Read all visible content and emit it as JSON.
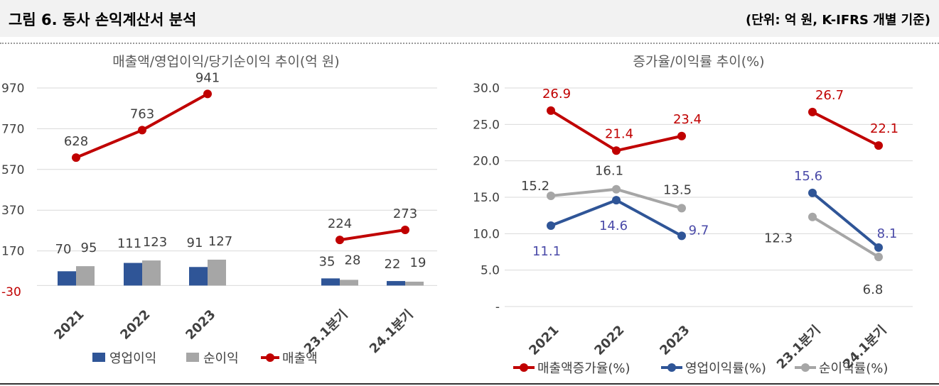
{
  "figure": {
    "title": "그림 6. 동사 손익계산서 분석",
    "unit": "(단위: 억 원, K-IFRS 개별 기준)"
  },
  "colors": {
    "revenue": "#c00000",
    "operating": "#2f5597",
    "net": "#a6a6a6",
    "grid": "#d9d9d9",
    "neg_tick": "#c00000"
  },
  "chart_data": [
    {
      "type": "bar",
      "title": "매출액/영업이익/당기순이익 추이(억 원)",
      "categories": [
        "2021",
        "2022",
        "2023",
        "",
        "23.1분기",
        "24.1분기"
      ],
      "ylim": [
        -30,
        970
      ],
      "yticks": [
        "970",
        "770",
        "570",
        "370",
        "170",
        "-30"
      ],
      "grid": true,
      "legend_position": "bottom",
      "series": [
        {
          "name": "영업이익",
          "type": "bar",
          "values": [
            70,
            111,
            91,
            null,
            35,
            22
          ]
        },
        {
          "name": "순이익",
          "type": "bar",
          "values": [
            95,
            123,
            127,
            null,
            28,
            19
          ]
        },
        {
          "name": "매출액",
          "type": "line",
          "values": [
            628,
            763,
            941,
            null,
            224,
            273
          ]
        }
      ]
    },
    {
      "type": "line",
      "title": "증가율/이익률 추이(%)",
      "categories": [
        "2021",
        "2022",
        "2023",
        "",
        "23.1분기",
        "24.1분기"
      ],
      "ylim": [
        0,
        30
      ],
      "yticks": [
        "30.0",
        "25.0",
        "20.0",
        "15.0",
        "10.0",
        "5.0",
        "-"
      ],
      "grid": true,
      "legend_position": "bottom",
      "series": [
        {
          "name": "매출액증가율(%)",
          "values": [
            26.9,
            21.4,
            23.4,
            null,
            26.7,
            22.1
          ]
        },
        {
          "name": "영업이익률(%)",
          "values": [
            11.1,
            14.6,
            9.7,
            null,
            15.6,
            8.1
          ]
        },
        {
          "name": "순이익률(%)",
          "values": [
            15.2,
            16.1,
            13.5,
            null,
            12.3,
            6.8
          ]
        }
      ]
    }
  ]
}
